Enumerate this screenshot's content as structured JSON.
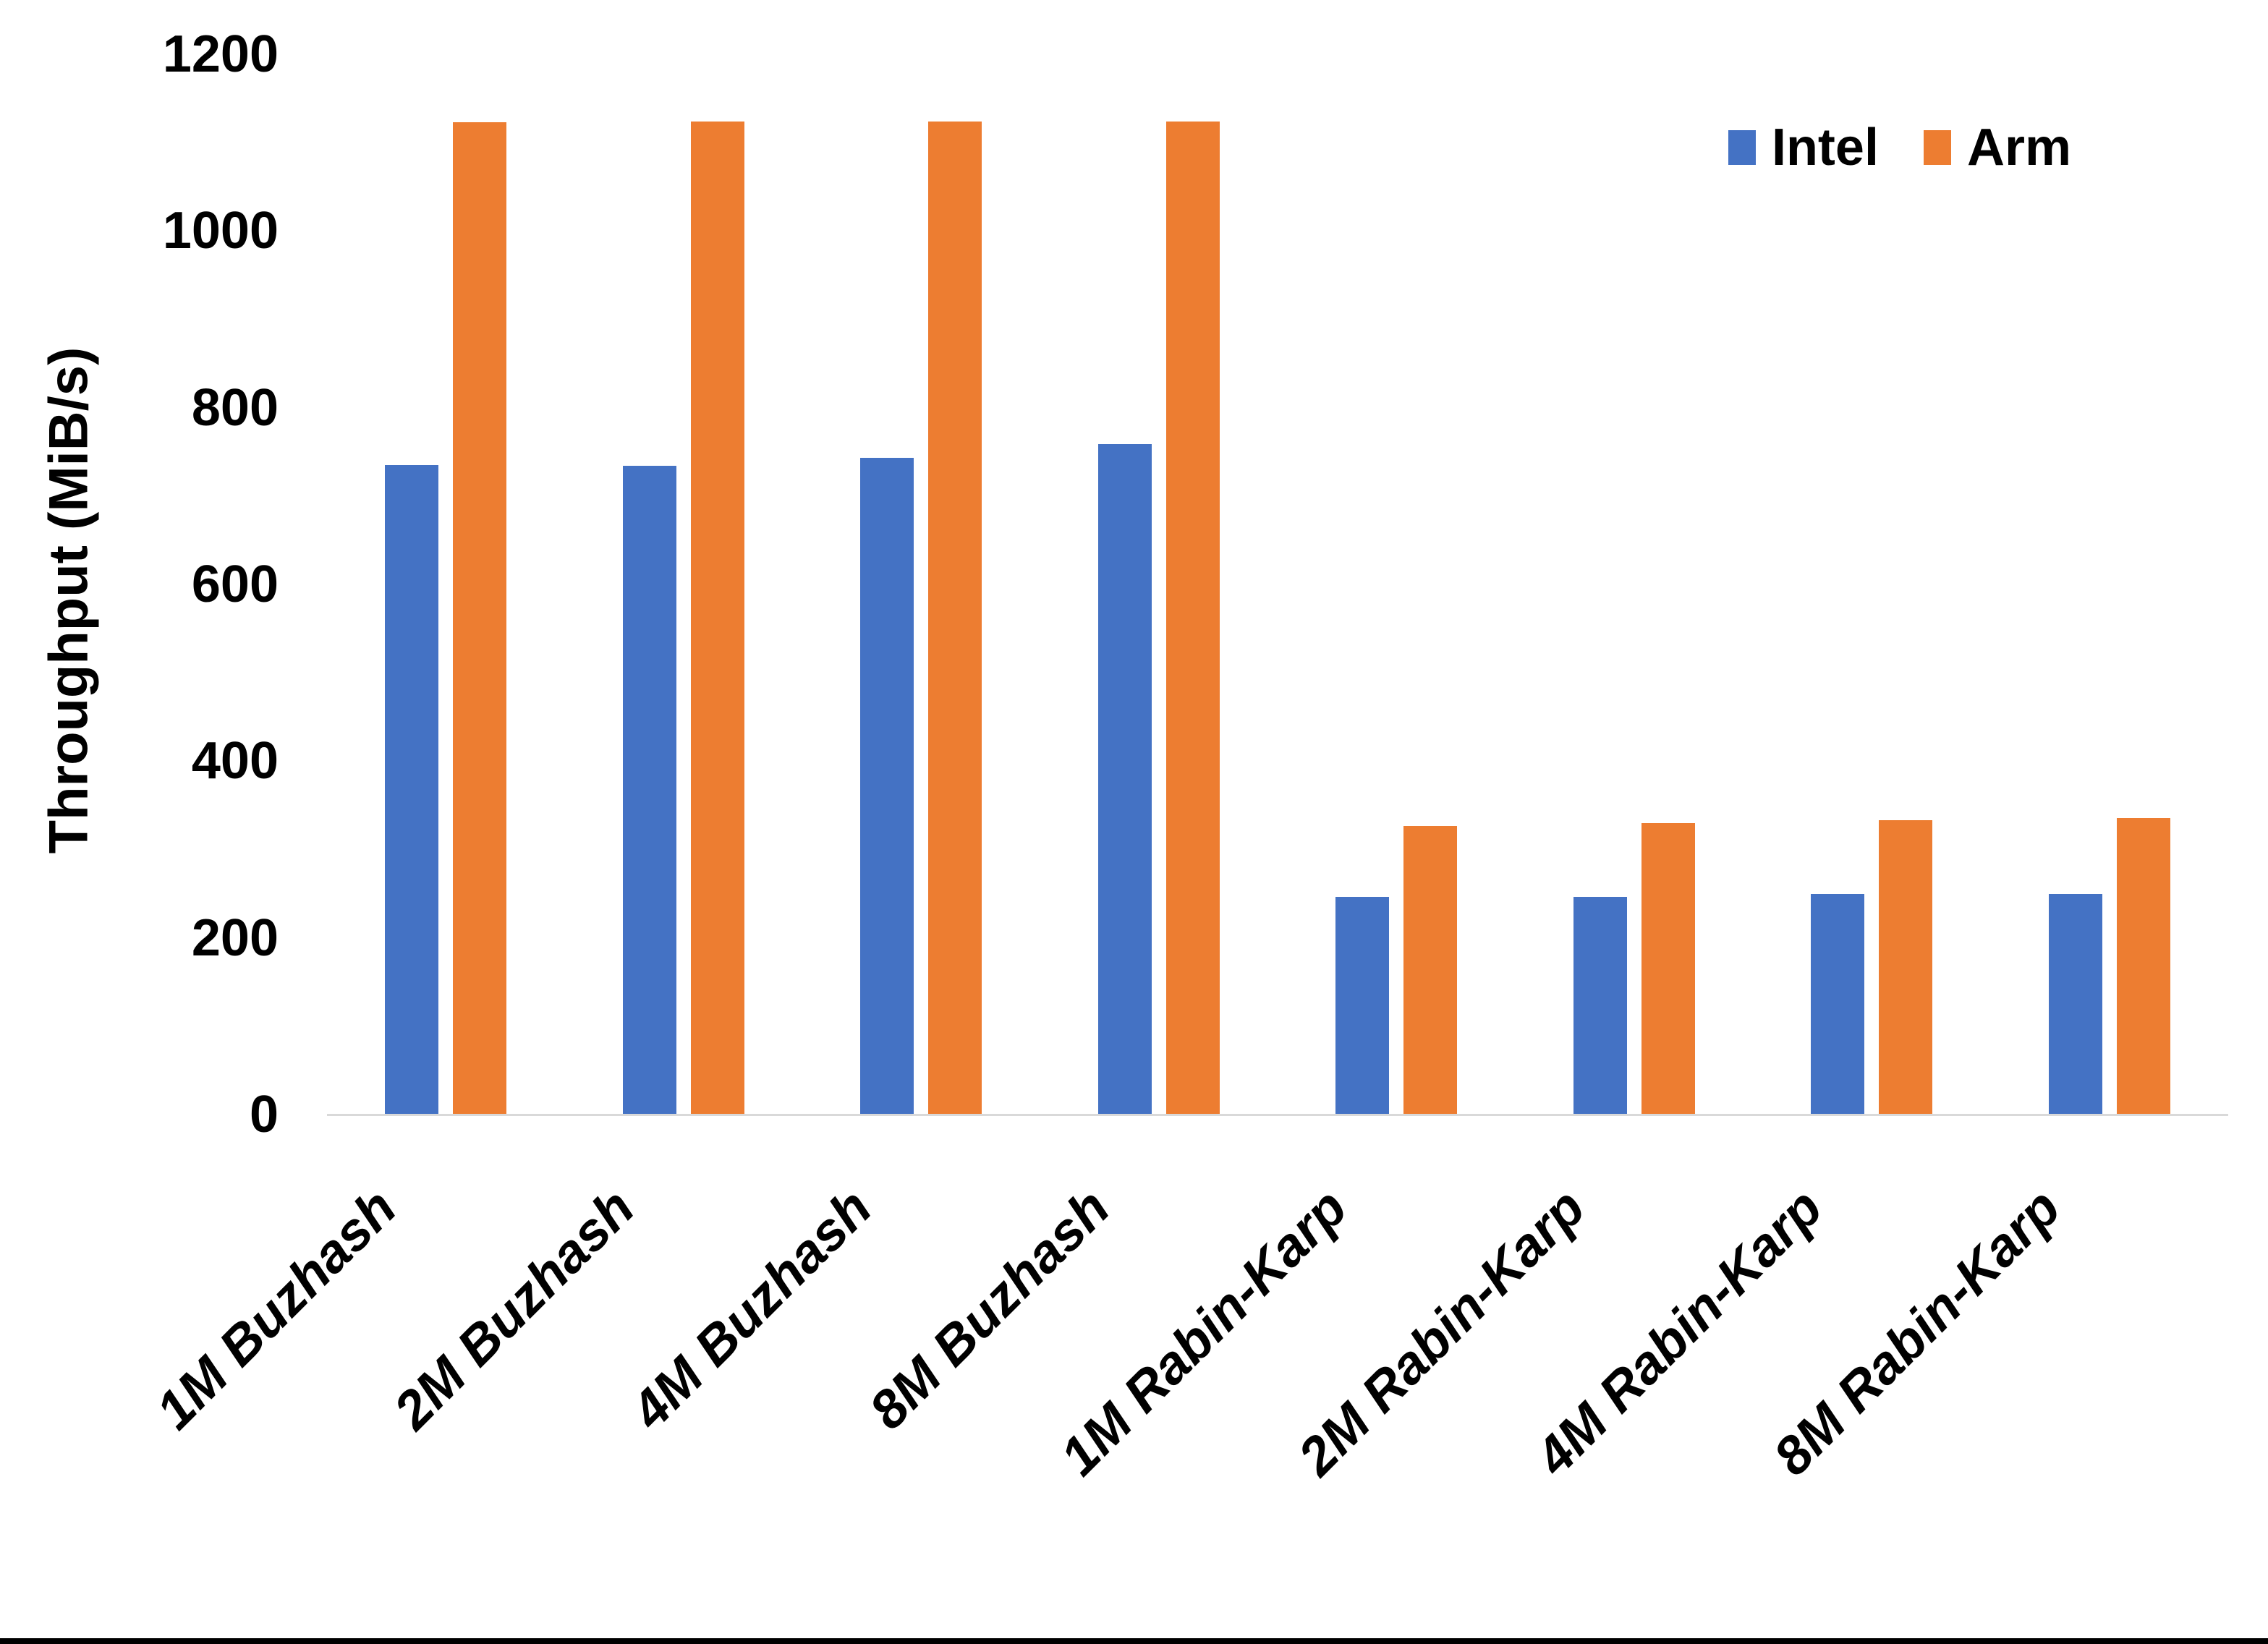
{
  "chart_data": {
    "type": "bar",
    "title": "",
    "xlabel": "",
    "ylabel": "Throughput (MiB/s)",
    "ylim": [
      0,
      1200
    ],
    "yticks": [
      0,
      200,
      400,
      600,
      800,
      1000,
      1200
    ],
    "grid": false,
    "legend_position": "top-right",
    "categories": [
      "1M Buzhash",
      "2M Buzhash",
      "4M Buzhash",
      "8M Buzhash",
      "1M Rabin-Karp",
      "2M Rabin-Karp",
      "4M Rabin-Karp",
      "8M Rabin-Karp"
    ],
    "series": [
      {
        "name": "Intel",
        "color": "#4472C4",
        "values": [
          735,
          734,
          743,
          759,
          246,
          246,
          250,
          250
        ]
      },
      {
        "name": "Arm",
        "color": "#ED7D31",
        "values": [
          1123,
          1124,
          1124,
          1124,
          327,
          330,
          333,
          336
        ]
      }
    ]
  }
}
